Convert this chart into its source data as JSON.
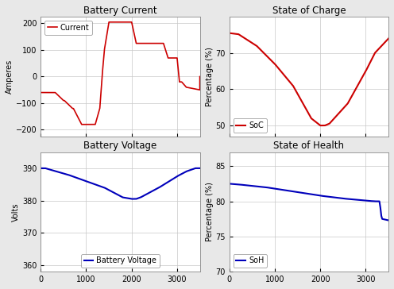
{
  "fig_width": 4.96,
  "fig_height": 3.64,
  "dpi": 100,
  "bg_color": "#e8e8e8",
  "subplot_bg": "#ffffff",
  "current_title": "Battery Current",
  "current_ylabel": "Amperes",
  "current_color": "#cc0000",
  "current_legend": "Current",
  "current_ylim": [
    -225,
    225
  ],
  "current_yticks": [
    -200,
    -100,
    0,
    100,
    200
  ],
  "soc_title": "State of Charge",
  "soc_ylabel": "Percentage (%)",
  "soc_color": "#cc0000",
  "soc_legend": "SoC",
  "soc_ylim": [
    47,
    80
  ],
  "soc_yticks": [
    50,
    60,
    70
  ],
  "voltage_title": "Battery Voltage",
  "voltage_ylabel": "Volts",
  "voltage_color": "#0000bb",
  "voltage_legend": "Battery Voltage",
  "voltage_ylim": [
    358,
    395
  ],
  "voltage_yticks": [
    360,
    370,
    380,
    390
  ],
  "soh_title": "State of Health",
  "soh_ylabel": "Percentage (%)",
  "soh_color": "#0000bb",
  "soh_legend": "SoH",
  "soh_ylim": [
    70,
    87
  ],
  "soh_yticks": [
    70,
    75,
    80,
    85
  ],
  "xlim": [
    0,
    3500
  ],
  "xticks": [
    0,
    1000,
    2000,
    3000
  ],
  "title_fontsize": 8.5,
  "label_fontsize": 7,
  "tick_fontsize": 7,
  "legend_fontsize": 7
}
